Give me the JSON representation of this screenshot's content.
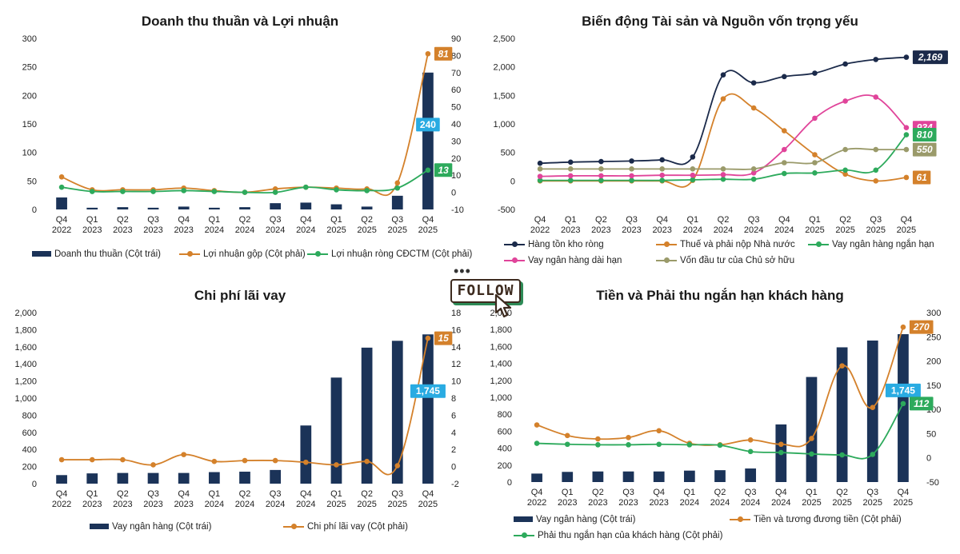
{
  "follow": {
    "label": "FOLLOW",
    "dots": "•••"
  },
  "quarters": [
    "Q4|2022",
    "Q1|2023",
    "Q2|2023",
    "Q3|2023",
    "Q4|2023",
    "Q1|2024",
    "Q2|2024",
    "Q3|2024",
    "Q4|2024",
    "Q1|2025",
    "Q2|2025",
    "Q3|2025",
    "Q4|2025"
  ],
  "chart_data": [
    {
      "id": "c1",
      "type": "bar+line",
      "title": "Doanh thu thuần và Lợi nhuận",
      "left_axis": {
        "min": 0,
        "max": 300,
        "step": 50
      },
      "right_axis": {
        "min": -10,
        "max": 90,
        "step": 10
      },
      "bars": {
        "name": "Doanh thu thuần (Cột trái)",
        "color": "#1b3358",
        "values": [
          21,
          3,
          4,
          3,
          5,
          3,
          4,
          11,
          12,
          9,
          5,
          24,
          240
        ]
      },
      "lines": [
        {
          "name": "Lợi nhuận gộp (Cột phải)",
          "color": "#d4812b",
          "values": [
            9,
            1.5,
            1.5,
            1.5,
            2.5,
            1,
            0,
            2,
            3,
            2.5,
            2,
            5.5,
            81
          ]
        },
        {
          "name": "Lợi nhuận ròng CĐCTM (Cột phải)",
          "color": "#2daa5c",
          "values": [
            3,
            0.5,
            0.5,
            0.5,
            1,
            0.5,
            0,
            0,
            3,
            1.5,
            1,
            2.5,
            13
          ]
        }
      ],
      "callouts": [
        {
          "series": "bars",
          "index": 12,
          "text": "240",
          "color": "#29abe2"
        },
        {
          "series": 0,
          "index": 12,
          "text": "81",
          "color": "#d4812b"
        },
        {
          "series": 1,
          "index": 12,
          "text": "13",
          "color": "#2daa5c"
        }
      ]
    },
    {
      "id": "c2",
      "type": "line",
      "title": "Biến động Tài sản và Nguồn vốn trọng yếu",
      "left_axis": {
        "min": -500,
        "max": 2500,
        "step": 500
      },
      "lines": [
        {
          "name": "Hàng tồn kho ròng",
          "color": "#1b2a4a",
          "values": [
            310,
            330,
            340,
            350,
            370,
            420,
            1860,
            1720,
            1830,
            1890,
            2050,
            2130,
            2169
          ]
        },
        {
          "name": "Thuế và phải nộp Nhà nước",
          "color": "#d4812b",
          "values": [
            0,
            0,
            0,
            0,
            0,
            10,
            1440,
            1280,
            880,
            460,
            120,
            0,
            61
          ]
        },
        {
          "name": "Vay ngân hàng ngắn hạn",
          "color": "#2daa5c",
          "values": [
            10,
            10,
            10,
            10,
            10,
            20,
            30,
            30,
            130,
            140,
            190,
            190,
            810
          ]
        },
        {
          "name": "Vay ngân hàng dài hạn",
          "color": "#e0449a",
          "values": [
            80,
            90,
            90,
            90,
            100,
            100,
            110,
            140,
            550,
            1100,
            1400,
            1470,
            934
          ]
        },
        {
          "name": "Vốn đầu tư của Chủ sở hữu",
          "color": "#9a9a6a",
          "values": [
            210,
            210,
            210,
            210,
            210,
            210,
            210,
            210,
            320,
            320,
            550,
            550,
            550
          ]
        }
      ],
      "callouts": [
        {
          "series": 0,
          "index": 12,
          "text": "2,169",
          "color": "#1b2a4a"
        },
        {
          "series": 3,
          "index": 12,
          "text": "934",
          "color": "#e0449a"
        },
        {
          "series": 2,
          "index": 12,
          "text": "810",
          "color": "#2daa5c"
        },
        {
          "series": 4,
          "index": 12,
          "text": "550",
          "color": "#9a9a6a"
        },
        {
          "series": 1,
          "index": 12,
          "text": "61",
          "color": "#d4812b"
        }
      ]
    },
    {
      "id": "c3",
      "type": "bar+line",
      "title": "Chi phí lãi vay",
      "left_axis": {
        "min": 0,
        "max": 2000,
        "step": 200
      },
      "right_axis": {
        "min": -2,
        "max": 18,
        "step": 2
      },
      "bars": {
        "name": "Vay ngân hàng (Cột trái)",
        "color": "#1b3358",
        "values": [
          100,
          120,
          125,
          125,
          125,
          135,
          140,
          160,
          680,
          1240,
          1590,
          1670,
          1745
        ]
      },
      "lines": [
        {
          "name": "Chi phí lãi vay (Cột phải)",
          "color": "#d4812b",
          "values": [
            0.8,
            0.8,
            0.8,
            0.2,
            1.4,
            0.6,
            0.7,
            0.7,
            0.5,
            0.2,
            0.6,
            0.1,
            15
          ]
        }
      ],
      "callouts": [
        {
          "series": "bars",
          "index": 12,
          "text": "1,745",
          "color": "#29abe2"
        },
        {
          "series": 0,
          "index": 12,
          "text": "15",
          "color": "#d4812b"
        }
      ]
    },
    {
      "id": "c4",
      "type": "bar+line",
      "title": "Tiền và Phải thu ngắn hạn khách hàng",
      "left_axis": {
        "min": 0,
        "max": 2000,
        "step": 200
      },
      "right_axis": {
        "min": -50,
        "max": 300,
        "step": 50
      },
      "bars": {
        "name": "Vay ngân hàng (Cột trái)",
        "color": "#1b3358",
        "values": [
          100,
          120,
          125,
          125,
          125,
          135,
          140,
          160,
          680,
          1240,
          1590,
          1670,
          1745
        ]
      },
      "lines": [
        {
          "name": "Tiền và tương đương tiền (Cột phải)",
          "color": "#d4812b",
          "values": [
            68,
            46,
            39,
            42,
            56,
            30,
            27,
            37,
            28,
            40,
            190,
            104,
            270
          ]
        },
        {
          "name": "Phải thu ngắn hạn của khách hàng (Cột phải)",
          "color": "#2daa5c",
          "values": [
            30,
            28,
            27,
            27,
            28,
            27,
            26,
            13,
            11,
            8,
            6,
            7,
            112
          ]
        }
      ],
      "callouts": [
        {
          "series": "bars",
          "index": 12,
          "text": "1,745",
          "color": "#29abe2"
        },
        {
          "series": 0,
          "index": 12,
          "text": "270",
          "color": "#d4812b"
        },
        {
          "series": 1,
          "index": 12,
          "text": "112",
          "color": "#2daa5c"
        }
      ]
    }
  ]
}
